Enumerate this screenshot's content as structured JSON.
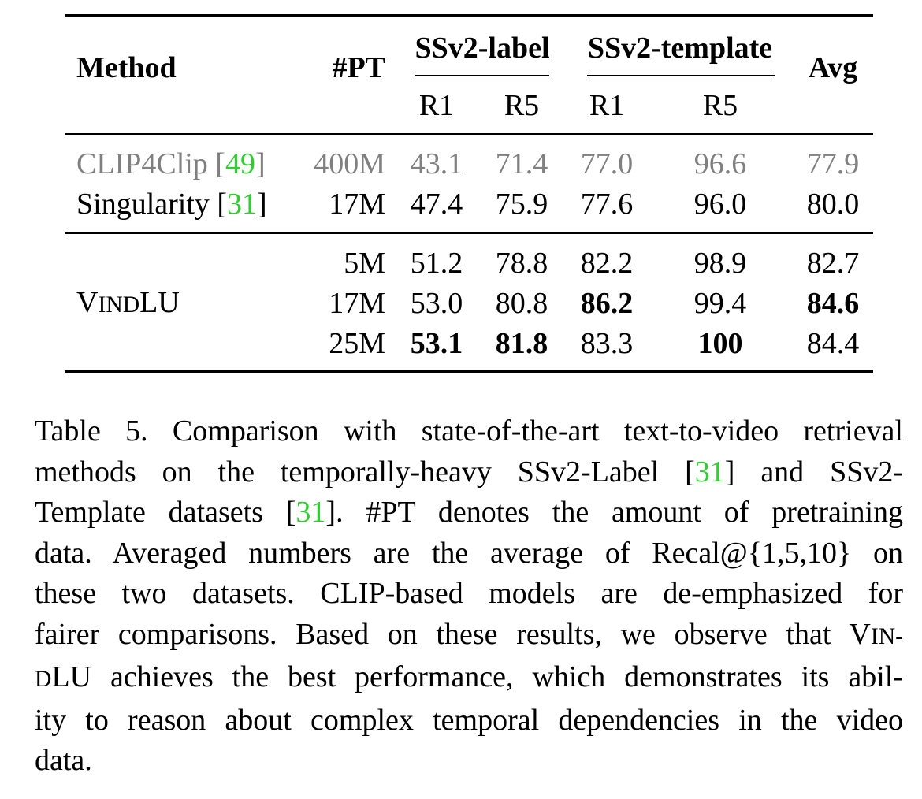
{
  "table": {
    "headers": {
      "method": "Method",
      "pt": "#PT",
      "group1": "SSv2-label",
      "group2": "SSv2-template",
      "avg": "Avg",
      "r1_a": "R1",
      "r5_a": "R5",
      "r1_b": "R1",
      "r5_b": "R5"
    },
    "rows": [
      {
        "method": "CLIP4Clip [",
        "cite": "49",
        "close": "]",
        "pt": "400M",
        "label_r1": "43.1",
        "label_r5": "71.4",
        "template_r1": "77.0",
        "template_r5": "96.6",
        "avg": "77.9",
        "deemphasized": true
      },
      {
        "method": "Singularity [",
        "cite": "31",
        "close": "]",
        "pt": "17M",
        "label_r1": "47.4",
        "label_r5": "75.9",
        "template_r1": "77.6",
        "template_r5": "96.0",
        "avg": "80.0"
      },
      {
        "method_big1": "V",
        "method_small1": "IND",
        "method_big2": "LU",
        "pt": "5M",
        "label_r1": "51.2",
        "label_r5": "78.8",
        "template_r1": "82.2",
        "template_r5": "98.9",
        "avg": "82.7"
      },
      {
        "pt": "17M",
        "label_r1": "53.0",
        "label_r5": "80.8",
        "template_r1": "86.2",
        "template_r5": "99.4",
        "avg": "84.6"
      },
      {
        "pt": "25M",
        "label_r1": "53.1",
        "label_r5": "81.8",
        "template_r1": "83.3",
        "template_r5": "100",
        "avg": "84.4"
      }
    ]
  },
  "caption": {
    "l1": "Table 5.  Comparison with state-of-the-art text-to-video retrieval",
    "l2a": "methods on the temporally-heavy SSv2-Label [",
    "l2cite": "31",
    "l2b": "] and SSv2-",
    "l3a": "Template datasets [",
    "l3cite": "31",
    "l3b": "].  #PT denotes the amount of pretraining",
    "l4": "data.  Averaged numbers are the average of Recal@{1,5,10} on",
    "l5": "these two datasets.  CLIP-based models are de-emphasized for",
    "l6a": "fairer comparisons. Based on these results, we observe that V",
    "l6sc": "IN-",
    "l7sc": "D",
    "l7b": "LU achieves the best performance, which demonstrates its abil-",
    "l8": "ity to reason about complex temporal dependencies in the video",
    "l9": "data."
  },
  "colors": {
    "citation": "#32cd32",
    "deemphasized": "#808080"
  }
}
